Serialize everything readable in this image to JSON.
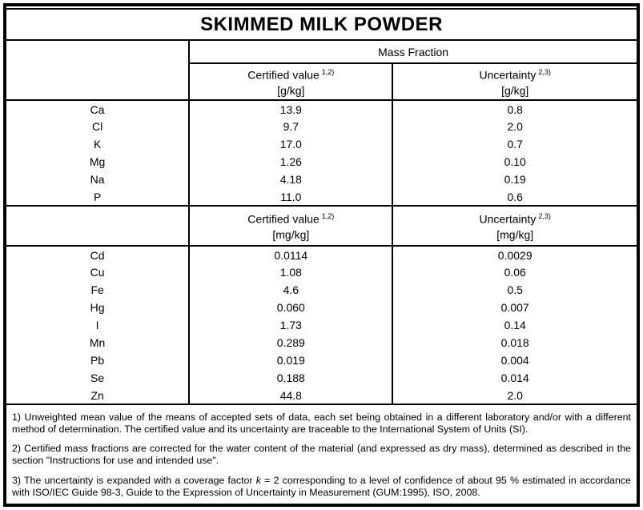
{
  "document": {
    "title": "SKIMMED MILK POWDER",
    "group_header": "Mass Fraction",
    "sections": [
      {
        "certified_label": "Certified value",
        "certified_sup": "1,2)",
        "certified_unit": "[g/kg]",
        "uncertainty_label": "Uncertainty",
        "uncertainty_sup": "2,3)",
        "uncertainty_unit": "[g/kg]",
        "rows": [
          {
            "element": "Ca",
            "certified": "13.9",
            "uncertainty": "0.8"
          },
          {
            "element": "Cl",
            "certified": "9.7",
            "uncertainty": "2.0"
          },
          {
            "element": "K",
            "certified": "17.0",
            "uncertainty": "0.7"
          },
          {
            "element": "Mg",
            "certified": "1.26",
            "uncertainty": "0.10"
          },
          {
            "element": "Na",
            "certified": "4.18",
            "uncertainty": "0.19"
          },
          {
            "element": "P",
            "certified": "11.0",
            "uncertainty": "0.6"
          }
        ]
      },
      {
        "certified_label": "Certified value",
        "certified_sup": "1,2)",
        "certified_unit": "[mg/kg]",
        "uncertainty_label": "Uncertainty",
        "uncertainty_sup": "2,3)",
        "uncertainty_unit": "[mg/kg]",
        "rows": [
          {
            "element": "Cd",
            "certified": "0.0114",
            "uncertainty": "0.0029"
          },
          {
            "element": "Cu",
            "certified": "1.08",
            "uncertainty": "0.06"
          },
          {
            "element": "Fe",
            "certified": "4.6",
            "uncertainty": "0.5"
          },
          {
            "element": "Hg",
            "certified": "0.060",
            "uncertainty": "0.007"
          },
          {
            "element": "I",
            "certified": "1.73",
            "uncertainty": "0.14"
          },
          {
            "element": "Mn",
            "certified": "0.289",
            "uncertainty": "0.018"
          },
          {
            "element": "Pb",
            "certified": "0.019",
            "uncertainty": "0.004"
          },
          {
            "element": "Se",
            "certified": "0.188",
            "uncertainty": "0.014"
          },
          {
            "element": "Zn",
            "certified": "44.8",
            "uncertainty": "2.0"
          }
        ]
      }
    ],
    "footnotes": [
      {
        "text": "1) Unweighted mean value of the means of accepted sets of data, each set being obtained in a different laboratory and/or with a different method of determination. The certified value and its uncertainty are traceable to the International System of Units (SI)."
      },
      {
        "text": "2) Certified mass fractions are corrected for the water content of the material (and expressed as dry mass), determined as described in the section \"Instructions for use and intended use\"."
      },
      {
        "prefix": "3) The uncertainty is expanded with a coverage factor ",
        "italic_var": "k",
        "suffix": " = 2 corresponding to a level of confidence of about 95 % estimated in accordance with ISO/IEC Guide 98-3, Guide to the Expression of Uncertainty in Measurement (GUM:1995), ISO, 2008."
      }
    ]
  },
  "colors": {
    "border": "#000000",
    "text": "#000000",
    "background": "#ffffff"
  }
}
